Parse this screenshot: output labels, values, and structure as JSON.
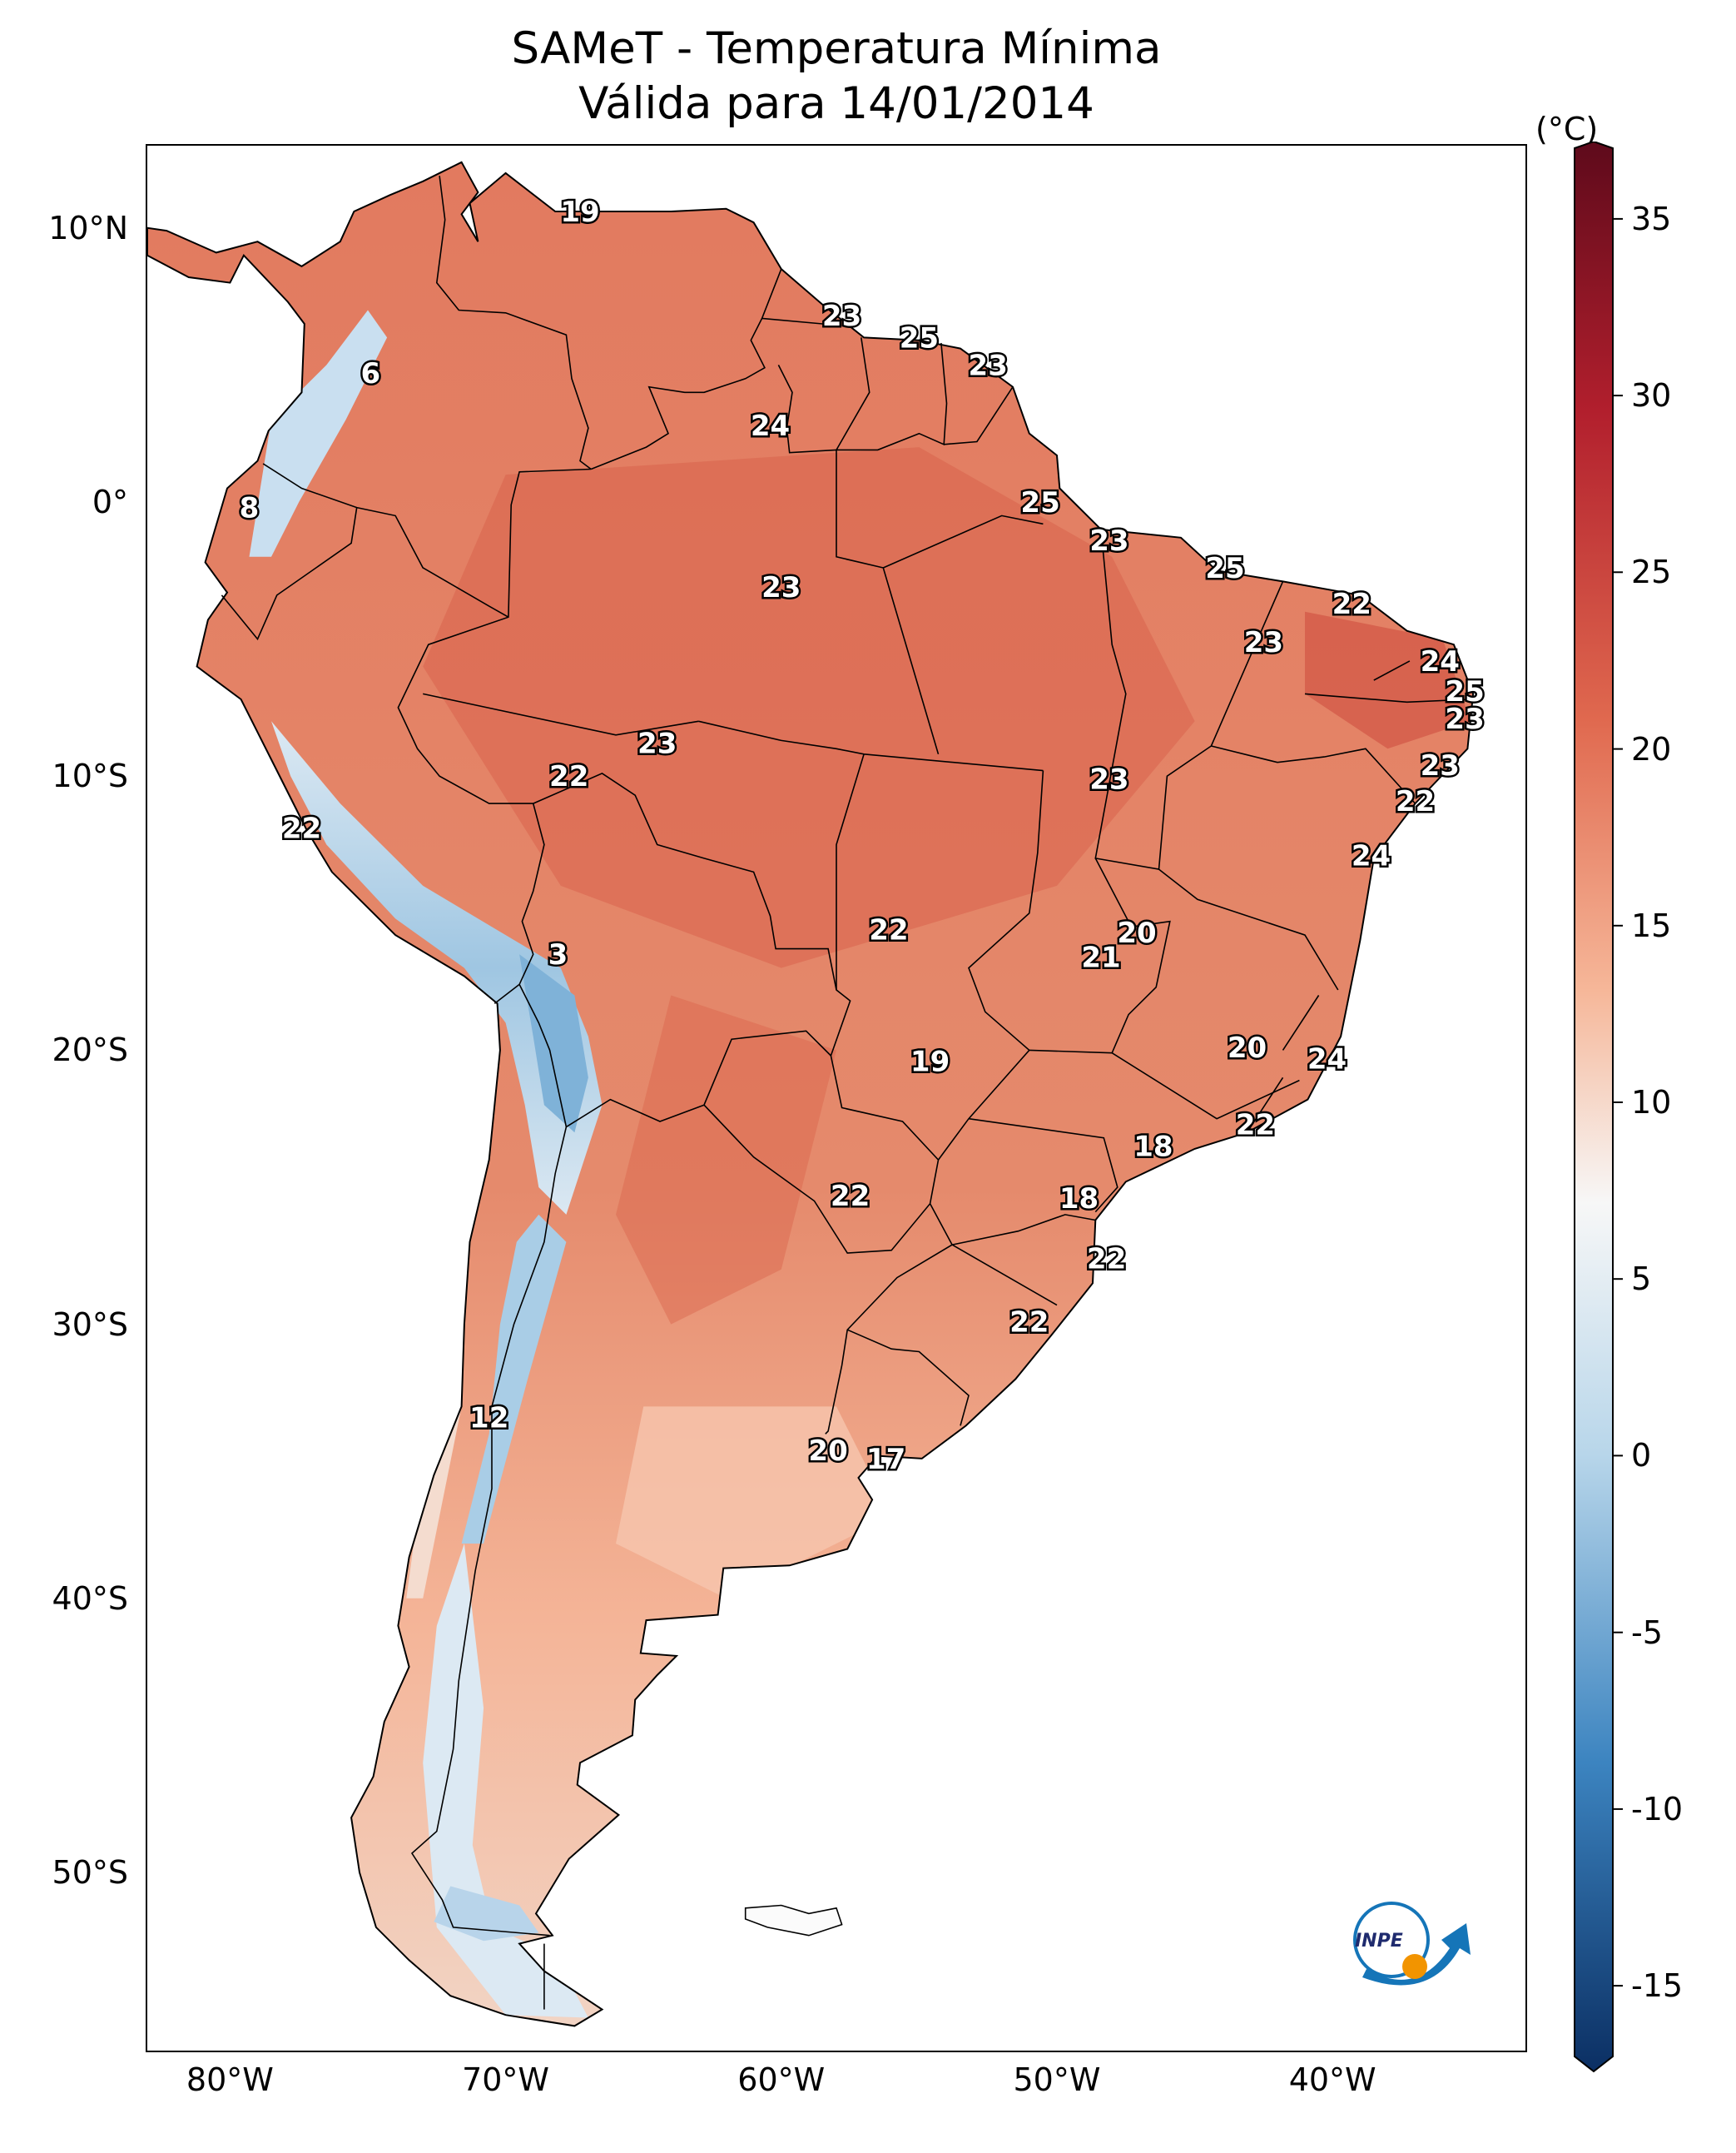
{
  "title": {
    "line1": "SAMeT - Temperatura Mínima",
    "line2": "Válida para 14/01/2014"
  },
  "colorbar": {
    "unit": "(°C)",
    "ticks": [
      "35",
      "30",
      "25",
      "20",
      "15",
      "10",
      "5",
      "0",
      "-5",
      "-10",
      "-15"
    ],
    "range": [
      -17,
      37
    ],
    "colors": {
      "low_end": "#0b2f63",
      "cold": "#3c84c0",
      "cool": "#b8d6ea",
      "neutral": "#f7f7f7",
      "warm": "#f6b799",
      "hot": "#e0694f",
      "very_hot": "#b21f2d",
      "high_end": "#5e0a1b"
    }
  },
  "axes": {
    "lat_ticks": [
      "10°N",
      "0°",
      "10°S",
      "20°S",
      "30°S",
      "40°S",
      "50°S"
    ],
    "lon_ticks": [
      "80°W",
      "70°W",
      "60°W",
      "50°W",
      "40°W"
    ]
  },
  "stations": [
    {
      "label": "19",
      "lon": -67.3,
      "lat": 10.6
    },
    {
      "label": "23",
      "lon": -57.8,
      "lat": 6.8
    },
    {
      "label": "25",
      "lon": -55.0,
      "lat": 6.0
    },
    {
      "label": "23",
      "lon": -52.5,
      "lat": 5.0
    },
    {
      "label": "6",
      "lon": -74.9,
      "lat": 4.7
    },
    {
      "label": "24",
      "lon": -60.4,
      "lat": 2.8
    },
    {
      "label": "8",
      "lon": -79.3,
      "lat": -0.2
    },
    {
      "label": "25",
      "lon": -50.6,
      "lat": 0.0
    },
    {
      "label": "23",
      "lon": -48.1,
      "lat": -1.4
    },
    {
      "label": "25",
      "lon": -43.9,
      "lat": -2.4
    },
    {
      "label": "23",
      "lon": -60.0,
      "lat": -3.1
    },
    {
      "label": "22",
      "lon": -39.3,
      "lat": -3.7
    },
    {
      "label": "23",
      "lon": -42.5,
      "lat": -5.1
    },
    {
      "label": "24",
      "lon": -36.1,
      "lat": -5.8
    },
    {
      "label": "25",
      "lon": -35.2,
      "lat": -6.9
    },
    {
      "label": "23",
      "lon": -35.2,
      "lat": -7.9
    },
    {
      "label": "23",
      "lon": -64.5,
      "lat": -8.8
    },
    {
      "label": "22",
      "lon": -67.7,
      "lat": -10.0
    },
    {
      "label": "23",
      "lon": -36.1,
      "lat": -9.6
    },
    {
      "label": "23",
      "lon": -48.1,
      "lat": -10.1
    },
    {
      "label": "22",
      "lon": -37.0,
      "lat": -10.9
    },
    {
      "label": "22",
      "lon": -77.4,
      "lat": -11.9
    },
    {
      "label": "24",
      "lon": -38.6,
      "lat": -12.9
    },
    {
      "label": "22",
      "lon": -56.1,
      "lat": -15.6
    },
    {
      "label": "20",
      "lon": -47.1,
      "lat": -15.7
    },
    {
      "label": "21",
      "lon": -48.4,
      "lat": -16.6
    },
    {
      "label": "3",
      "lon": -68.1,
      "lat": -16.5
    },
    {
      "label": "20",
      "lon": -43.1,
      "lat": -19.9
    },
    {
      "label": "19",
      "lon": -54.6,
      "lat": -20.4
    },
    {
      "label": "24",
      "lon": -40.2,
      "lat": -20.3
    },
    {
      "label": "22",
      "lon": -42.8,
      "lat": -22.7
    },
    {
      "label": "18",
      "lon": -46.5,
      "lat": -23.5
    },
    {
      "label": "22",
      "lon": -57.5,
      "lat": -25.3
    },
    {
      "label": "18",
      "lon": -49.2,
      "lat": -25.4
    },
    {
      "label": "22",
      "lon": -48.2,
      "lat": -27.6
    },
    {
      "label": "22",
      "lon": -51.0,
      "lat": -29.9
    },
    {
      "label": "12",
      "lon": -70.6,
      "lat": -33.4
    },
    {
      "label": "20",
      "lon": -58.3,
      "lat": -34.6
    },
    {
      "label": "17",
      "lon": -56.2,
      "lat": -34.9
    }
  ],
  "logo": {
    "text": "INPE"
  }
}
